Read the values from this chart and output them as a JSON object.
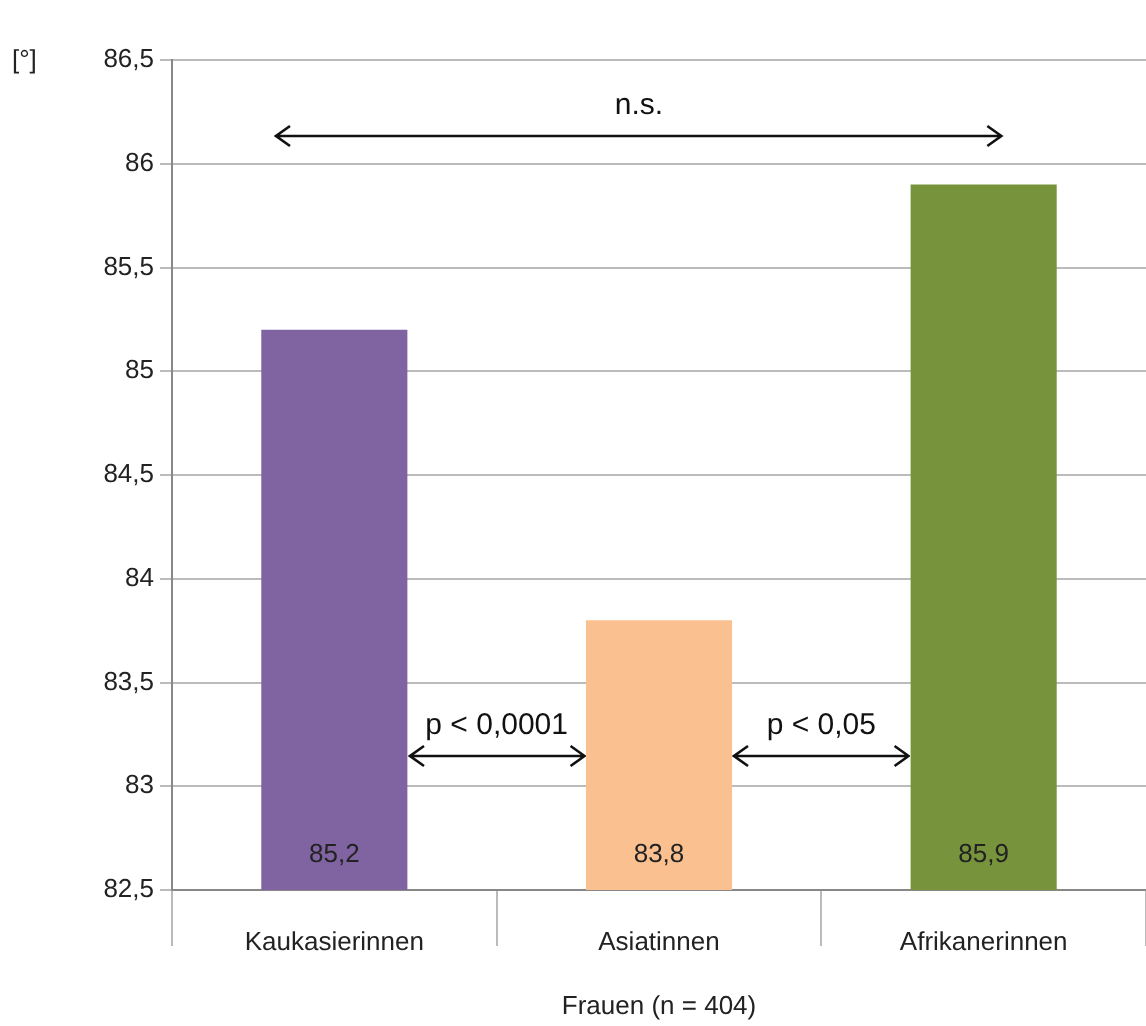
{
  "chart_data": {
    "type": "bar",
    "ylabel": "[°]",
    "xlabel": "Frauen (n = 404)",
    "categories": [
      "Kaukasierinnen",
      "Asiatinnen",
      "Afrikanerinnen"
    ],
    "values": [
      85.2,
      83.8,
      85.9
    ],
    "colors": [
      "#8064a2",
      "#fac090",
      "#77933c"
    ],
    "value_labels": [
      "85,2",
      "83,8",
      "85,9"
    ],
    "ylim": [
      82.5,
      86.5
    ],
    "yticks": [
      {
        "value": 82.5,
        "label": "82,5"
      },
      {
        "value": 83,
        "label": "83"
      },
      {
        "value": 83.5,
        "label": "83,5"
      },
      {
        "value": 84,
        "label": "84"
      },
      {
        "value": 84.5,
        "label": "84,5"
      },
      {
        "value": 85,
        "label": "85"
      },
      {
        "value": 85.5,
        "label": "85,5"
      },
      {
        "value": 86,
        "label": "86"
      },
      {
        "value": 86.5,
        "label": "86,5"
      }
    ],
    "grid": "y",
    "legend": false,
    "annotations": [
      "n.s.",
      "p < 0,0001",
      "p < 0,05"
    ]
  }
}
